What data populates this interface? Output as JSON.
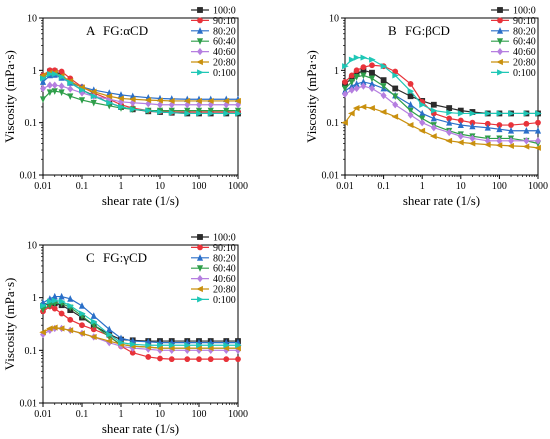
{
  "chart_data": [
    {
      "type": "line",
      "panel_letter": "A",
      "title": "FG:αCD",
      "xlabel": "shear rate (1/s)",
      "ylabel": "Viscosity (mPa·s)",
      "xscale": "log",
      "yscale": "log",
      "xlim": [
        0.01,
        1000
      ],
      "ylim": [
        0.01,
        10
      ],
      "x_tick_labels": [
        "0.01",
        "0.1",
        "1",
        "10",
        "100",
        "1000"
      ],
      "y_tick_labels": [
        "0.01",
        "0.1",
        "1",
        "10"
      ],
      "legend": "right",
      "x": [
        0.01,
        0.015,
        0.02,
        0.03,
        0.05,
        0.1,
        0.2,
        0.5,
        1,
        2,
        5,
        10,
        20,
        50,
        100,
        200,
        500,
        1000
      ],
      "series": [
        {
          "name": "100:0",
          "color": "#2b2b2b",
          "marker": "square",
          "values": [
            0.75,
            0.95,
            0.95,
            0.82,
            0.58,
            0.42,
            0.33,
            0.24,
            0.2,
            0.18,
            0.165,
            0.16,
            0.155,
            0.15,
            0.15,
            0.15,
            0.15,
            0.15
          ]
        },
        {
          "name": "90:10",
          "color": "#e8333a",
          "marker": "circle",
          "values": [
            0.8,
            1.0,
            1.0,
            0.95,
            0.7,
            0.48,
            0.37,
            0.28,
            0.22,
            0.19,
            0.17,
            0.165,
            0.16,
            0.16,
            0.16,
            0.16,
            0.16,
            0.16
          ]
        },
        {
          "name": "80:20",
          "color": "#2a6fc9",
          "marker": "triangle-up",
          "values": [
            0.6,
            0.8,
            0.82,
            0.72,
            0.58,
            0.48,
            0.42,
            0.37,
            0.34,
            0.32,
            0.3,
            0.29,
            0.285,
            0.28,
            0.28,
            0.28,
            0.28,
            0.28
          ]
        },
        {
          "name": "60:40",
          "color": "#2e9e4a",
          "marker": "triangle-down",
          "values": [
            0.28,
            0.38,
            0.4,
            0.38,
            0.32,
            0.27,
            0.24,
            0.21,
            0.19,
            0.18,
            0.17,
            0.17,
            0.17,
            0.17,
            0.17,
            0.17,
            0.17,
            0.17
          ]
        },
        {
          "name": "40:60",
          "color": "#b57fe0",
          "marker": "diamond",
          "values": [
            0.45,
            0.52,
            0.52,
            0.5,
            0.44,
            0.37,
            0.32,
            0.28,
            0.25,
            0.24,
            0.23,
            0.22,
            0.22,
            0.22,
            0.22,
            0.22,
            0.22,
            0.22
          ]
        },
        {
          "name": "20:80",
          "color": "#c9900e",
          "marker": "triangle-left",
          "values": [
            0.8,
            0.9,
            0.9,
            0.78,
            0.62,
            0.47,
            0.39,
            0.32,
            0.29,
            0.28,
            0.27,
            0.265,
            0.26,
            0.26,
            0.26,
            0.26,
            0.26,
            0.26
          ]
        },
        {
          "name": "0:100",
          "color": "#1fc7b6",
          "marker": "triangle-right",
          "values": [
            0.7,
            0.85,
            0.85,
            0.75,
            0.58,
            0.42,
            0.32,
            0.24,
            0.2,
            0.18,
            0.17,
            0.16,
            0.155,
            0.15,
            0.15,
            0.15,
            0.15,
            0.15
          ]
        }
      ]
    },
    {
      "type": "line",
      "panel_letter": "B",
      "title": "FG:βCD",
      "xlabel": "shear rate (1/s)",
      "ylabel": "Viscosity (mPa·s)",
      "xscale": "log",
      "yscale": "log",
      "xlim": [
        0.01,
        1000
      ],
      "ylim": [
        0.01,
        10
      ],
      "x_tick_labels": [
        "0.01",
        "0.1",
        "1",
        "10",
        "100",
        "1000"
      ],
      "y_tick_labels": [
        "0.01",
        "0.1",
        "1",
        "10"
      ],
      "legend": "right",
      "x": [
        0.01,
        0.015,
        0.02,
        0.03,
        0.05,
        0.1,
        0.2,
        0.5,
        1,
        2,
        5,
        10,
        20,
        50,
        100,
        200,
        500,
        1000
      ],
      "series": [
        {
          "name": "100:0",
          "color": "#2b2b2b",
          "marker": "square",
          "values": [
            0.55,
            0.7,
            0.85,
            1.0,
            0.9,
            0.65,
            0.45,
            0.32,
            0.26,
            0.22,
            0.19,
            0.17,
            0.16,
            0.15,
            0.15,
            0.15,
            0.15,
            0.15
          ]
        },
        {
          "name": "90:10",
          "color": "#e8333a",
          "marker": "circle",
          "values": [
            0.6,
            0.8,
            1.0,
            1.15,
            1.25,
            1.2,
            0.95,
            0.55,
            0.25,
            0.15,
            0.12,
            0.11,
            0.1,
            0.095,
            0.09,
            0.09,
            0.095,
            0.1
          ]
        },
        {
          "name": "80:20",
          "color": "#2a6fc9",
          "marker": "triangle-up",
          "values": [
            0.4,
            0.5,
            0.55,
            0.6,
            0.55,
            0.45,
            0.33,
            0.22,
            0.15,
            0.12,
            0.1,
            0.09,
            0.085,
            0.08,
            0.075,
            0.07,
            0.07,
            0.07
          ]
        },
        {
          "name": "60:40",
          "color": "#2e9e4a",
          "marker": "triangle-down",
          "values": [
            0.45,
            0.6,
            0.75,
            0.8,
            0.7,
            0.5,
            0.32,
            0.17,
            0.12,
            0.09,
            0.07,
            0.06,
            0.055,
            0.05,
            0.05,
            0.05,
            0.045,
            0.04
          ]
        },
        {
          "name": "40:60",
          "color": "#b57fe0",
          "marker": "diamond",
          "values": [
            0.35,
            0.42,
            0.45,
            0.5,
            0.45,
            0.33,
            0.22,
            0.14,
            0.1,
            0.08,
            0.065,
            0.055,
            0.05,
            0.045,
            0.045,
            0.045,
            0.045,
            0.045
          ]
        },
        {
          "name": "20:80",
          "color": "#c9900e",
          "marker": "triangle-left",
          "values": [
            0.1,
            0.15,
            0.19,
            0.2,
            0.19,
            0.16,
            0.13,
            0.09,
            0.07,
            0.055,
            0.045,
            0.042,
            0.04,
            0.038,
            0.037,
            0.036,
            0.035,
            0.033
          ]
        },
        {
          "name": "0:100",
          "color": "#1fc7b6",
          "marker": "triangle-right",
          "values": [
            1.2,
            1.6,
            1.75,
            1.75,
            1.6,
            1.2,
            0.8,
            0.4,
            0.22,
            0.17,
            0.155,
            0.15,
            0.15,
            0.15,
            0.15,
            0.15,
            0.15,
            0.15
          ]
        }
      ]
    },
    {
      "type": "line",
      "panel_letter": "C",
      "title": "FG:γCD",
      "xlabel": "shear rate (1/s)",
      "ylabel": "Viscosity (mPa·s)",
      "xscale": "log",
      "yscale": "log",
      "xlim": [
        0.01,
        1000
      ],
      "ylim": [
        0.01,
        10
      ],
      "x_tick_labels": [
        "0.01",
        "0.1",
        "1",
        "10",
        "100",
        "1000"
      ],
      "y_tick_labels": [
        "0.01",
        "0.1",
        "1",
        "10"
      ],
      "legend": "right",
      "x": [
        0.01,
        0.015,
        0.02,
        0.03,
        0.05,
        0.1,
        0.2,
        0.5,
        1,
        2,
        5,
        10,
        20,
        50,
        100,
        200,
        500,
        1000
      ],
      "series": [
        {
          "name": "100:0",
          "color": "#2b2b2b",
          "marker": "square",
          "values": [
            0.7,
            0.8,
            0.78,
            0.72,
            0.58,
            0.42,
            0.3,
            0.2,
            0.16,
            0.155,
            0.15,
            0.15,
            0.15,
            0.15,
            0.15,
            0.15,
            0.15,
            0.15
          ]
        },
        {
          "name": "90:10",
          "color": "#e8333a",
          "marker": "circle",
          "values": [
            0.55,
            0.68,
            0.62,
            0.5,
            0.38,
            0.3,
            0.25,
            0.19,
            0.12,
            0.09,
            0.075,
            0.07,
            0.068,
            0.068,
            0.068,
            0.068,
            0.068,
            0.068
          ]
        },
        {
          "name": "80:20",
          "color": "#2a6fc9",
          "marker": "triangle-up",
          "values": [
            0.8,
            0.95,
            1.05,
            1.05,
            0.95,
            0.7,
            0.45,
            0.25,
            0.17,
            0.15,
            0.145,
            0.14,
            0.14,
            0.14,
            0.14,
            0.14,
            0.14,
            0.14
          ]
        },
        {
          "name": "60:40",
          "color": "#2e9e4a",
          "marker": "triangle-down",
          "values": [
            0.6,
            0.72,
            0.78,
            0.78,
            0.65,
            0.45,
            0.3,
            0.18,
            0.13,
            0.12,
            0.115,
            0.11,
            0.11,
            0.11,
            0.11,
            0.11,
            0.11,
            0.11
          ]
        },
        {
          "name": "40:60",
          "color": "#b57fe0",
          "marker": "diamond",
          "values": [
            0.2,
            0.24,
            0.26,
            0.26,
            0.24,
            0.21,
            0.18,
            0.14,
            0.12,
            0.11,
            0.105,
            0.1,
            0.1,
            0.1,
            0.1,
            0.1,
            0.1,
            0.1
          ]
        },
        {
          "name": "20:80",
          "color": "#c9900e",
          "marker": "triangle-left",
          "values": [
            0.22,
            0.26,
            0.27,
            0.26,
            0.24,
            0.21,
            0.18,
            0.15,
            0.13,
            0.12,
            0.115,
            0.11,
            0.11,
            0.11,
            0.11,
            0.11,
            0.11,
            0.11
          ]
        },
        {
          "name": "0:100",
          "color": "#1fc7b6",
          "marker": "triangle-right",
          "values": [
            0.7,
            0.85,
            0.88,
            0.85,
            0.7,
            0.5,
            0.35,
            0.2,
            0.14,
            0.13,
            0.125,
            0.125,
            0.125,
            0.125,
            0.125,
            0.125,
            0.125,
            0.125
          ]
        }
      ]
    }
  ]
}
